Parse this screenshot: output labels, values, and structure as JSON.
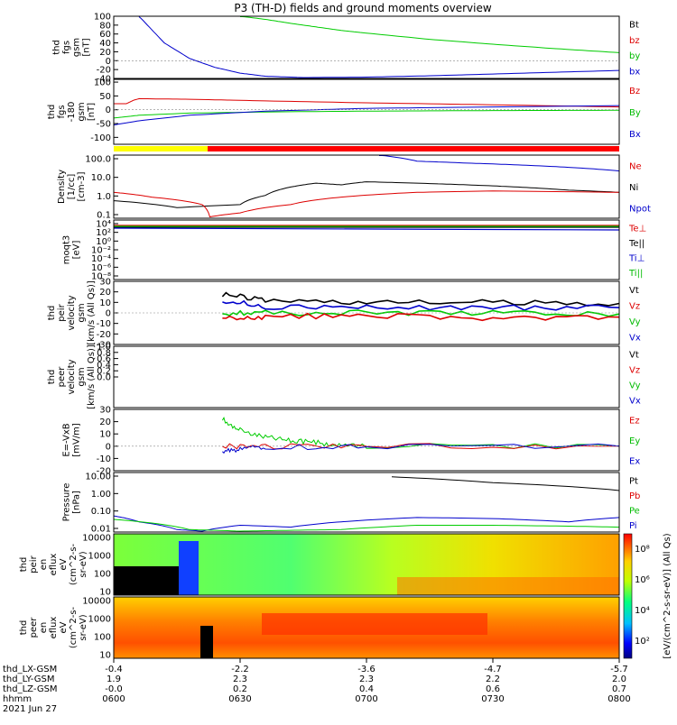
{
  "title": "P3 (TH-D) fields and ground moments overview",
  "chart_data": {
    "type": "line",
    "x": [
      "0600",
      "0630",
      "0700",
      "0730",
      "0800"
    ],
    "x_time_range": [
      "0600",
      "0800"
    ],
    "panels": [
      {
        "ylabel": [
          "thd",
          "fgs",
          "gsm",
          "[nT]"
        ],
        "ylim": [
          -40,
          100
        ],
        "yticks": [
          "100",
          "80",
          "60",
          "40",
          "20",
          "0",
          "-20",
          "-40"
        ],
        "legend": [
          {
            "label": "Bt",
            "color": "#000000"
          },
          {
            "label": "bz",
            "color": "#dd0000"
          },
          {
            "label": "by",
            "color": "#00bb00"
          },
          {
            "label": "bx",
            "color": "#0000cc"
          }
        ],
        "series": [
          {
            "name": "by",
            "color": "#00cc00",
            "x": [
              0.5,
              0.6,
              0.7,
              0.8,
              0.9,
              1.0,
              1.25,
              1.5,
              1.75,
              2.0
            ],
            "values": [
              100,
              93,
              84,
              76,
              68,
              62,
              48,
              37,
              27,
              18
            ]
          },
          {
            "name": "bx",
            "color": "#0000cc",
            "x": [
              0.1,
              0.2,
              0.3,
              0.4,
              0.5,
              0.6,
              0.75,
              1.0,
              1.25,
              1.5,
              1.75,
              2.0
            ],
            "values": [
              100,
              40,
              5,
              -15,
              -28,
              -35,
              -38,
              -37,
              -34,
              -30,
              -26,
              -22
            ]
          }
        ]
      },
      {
        "ylabel": [
          "thd",
          "fgs",
          "-180",
          "gsm",
          "[nT]"
        ],
        "ylim": [
          -125,
          110
        ],
        "yticks": [
          "100",
          "50",
          "0",
          "-50",
          "-100"
        ],
        "legend": [
          {
            "label": "Bz",
            "color": "#dd0000"
          },
          {
            "label": "By",
            "color": "#00bb00"
          },
          {
            "label": "Bx",
            "color": "#0000cc"
          }
        ],
        "series": [
          {
            "name": "Bz",
            "color": "#dd0000",
            "x": [
              0.0,
              0.05,
              0.08,
              0.1,
              0.3,
              0.6,
              1.0,
              1.5,
              2.0
            ],
            "values": [
              22,
              22,
              35,
              40,
              38,
              32,
              25,
              18,
              10
            ]
          },
          {
            "name": "By",
            "color": "#00cc00",
            "x": [
              0.0,
              0.1,
              0.3,
              0.6,
              1.0,
              1.5,
              2.0
            ],
            "values": [
              -30,
              -20,
              -12,
              -8,
              -5,
              -3,
              -2
            ]
          },
          {
            "name": "Bx",
            "color": "#0000cc",
            "x": [
              0.0,
              0.1,
              0.3,
              0.6,
              1.0,
              1.5,
              2.0
            ],
            "values": [
              -55,
              -40,
              -20,
              -5,
              5,
              10,
              15
            ]
          }
        ]
      },
      {
        "ylabel": [
          "Density",
          "[1/cc]",
          "[cm-3]"
        ],
        "scale": "log",
        "ylim": [
          0.05,
          200
        ],
        "yticks": [
          "100.0",
          "10.0",
          "1.0",
          "0.1"
        ],
        "legend": [
          {
            "label": "Ne",
            "color": "#dd0000"
          },
          {
            "label": "Ni",
            "color": "#000000"
          },
          {
            "label": "Npot",
            "color": "#0000cc"
          }
        ],
        "series": [
          {
            "name": "Ne",
            "color": "#0000cc",
            "x": [
              1.05,
              1.2,
              1.4,
              1.6,
              1.8,
              2.0
            ],
            "values": [
              200,
              90,
              70,
              55,
              40,
              25
            ]
          },
          {
            "name": "Ni",
            "color": "#000000",
            "x": [
              0.0,
              0.25,
              0.5,
              0.6,
              0.7,
              0.8,
              0.9,
              1.0,
              1.2,
              1.4,
              1.6,
              1.8,
              2.0
            ],
            "values": [
              0.5,
              0.2,
              0.3,
              1.0,
              3.0,
              5.0,
              4.0,
              6.0,
              5.0,
              4.0,
              3.0,
              2.0,
              1.5
            ]
          },
          {
            "name": "Npot",
            "color": "#dd0000",
            "x": [
              0.0,
              0.15,
              0.35,
              0.38,
              0.5,
              0.7,
              0.9,
              1.2,
              1.5,
              2.0
            ],
            "values": [
              1.5,
              0.8,
              0.3,
              0.06,
              0.1,
              0.3,
              0.8,
              1.5,
              1.8,
              1.5
            ]
          }
        ]
      },
      {
        "ylabel": [
          "moqt3",
          "[eV]"
        ],
        "scale": "log",
        "ylim": [
          1e-09,
          10000.0
        ],
        "yticks": [
          "10⁴",
          "10²",
          "10⁰",
          "10⁻²",
          "10⁻⁴",
          "10⁻⁶",
          "10⁻⁸"
        ],
        "legend": [
          {
            "label": "Te⊥",
            "color": "#dd0000"
          },
          {
            "label": "Te||",
            "color": "#000000"
          },
          {
            "label": "Ti⊥",
            "color": "#0000cc"
          },
          {
            "label": "Ti||",
            "color": "#00bb00"
          }
        ]
      },
      {
        "ylabel": [
          "thd",
          "peir",
          "velocity",
          "gsm",
          "[km/s (All Qs)]"
        ],
        "ylim": [
          -30,
          30
        ],
        "yticks": [
          "30",
          "20",
          "10",
          "0",
          "-10",
          "-20",
          "-30"
        ],
        "legend": [
          {
            "label": "Vt",
            "color": "#000000"
          },
          {
            "label": "Vz",
            "color": "#dd0000"
          },
          {
            "label": "Vy",
            "color": "#00bb00"
          },
          {
            "label": "Vx",
            "color": "#0000cc"
          }
        ],
        "series": [
          {
            "name": "Vt",
            "color": "#000000",
            "x": [
              0.43,
              0.6,
              1.0,
              1.5,
              2.0
            ],
            "values": [
              18,
              12,
              10,
              10,
              9
            ]
          },
          {
            "name": "Vx",
            "color": "#0000cc",
            "x": [
              0.43,
              0.6,
              1.0,
              1.5,
              2.0
            ],
            "values": [
              12,
              6,
              5,
              5,
              5
            ]
          },
          {
            "name": "Vy",
            "color": "#00cc00",
            "x": [
              0.43,
              0.6,
              1.0,
              1.5,
              2.0
            ],
            "values": [
              0,
              0,
              0,
              0,
              -1
            ]
          },
          {
            "name": "Vz",
            "color": "#dd0000",
            "x": [
              0.43,
              0.6,
              1.0,
              1.5,
              2.0
            ],
            "values": [
              -5,
              -4,
              -2,
              -5,
              -4
            ]
          }
        ]
      },
      {
        "ylabel": [
          "thd",
          "peer",
          "velocity",
          "gsm",
          "[km/s (All Qs)]"
        ],
        "ylim": [
          -1,
          1
        ],
        "yticks": [
          "1.0",
          "0.8",
          "0.6",
          "0.4",
          "0.2",
          "0.0"
        ],
        "legend": [
          {
            "label": "Vt",
            "color": "#000000"
          },
          {
            "label": "Vz",
            "color": "#dd0000"
          },
          {
            "label": "Vy",
            "color": "#00bb00"
          },
          {
            "label": "Vx",
            "color": "#0000cc"
          }
        ]
      },
      {
        "ylabel": [
          "E=-VxB",
          "[mV/m]"
        ],
        "ylim": [
          -20,
          30
        ],
        "yticks": [
          "30",
          "20",
          "10",
          "0",
          "-10",
          "-20"
        ],
        "legend": [
          {
            "label": "Ez",
            "color": "#dd0000"
          },
          {
            "label": "Ey",
            "color": "#00bb00"
          },
          {
            "label": "Ex",
            "color": "#0000cc"
          }
        ],
        "series": [
          {
            "name": "Ey",
            "color": "#00cc00",
            "x": [
              0.43,
              0.5,
              0.6,
              0.7,
              0.8,
              0.9,
              1.0,
              2.0
            ],
            "values": [
              22,
              13,
              8,
              5,
              3,
              1,
              0,
              0
            ]
          },
          {
            "name": "Ez",
            "color": "#dd0000",
            "x": [
              0.43,
              0.6,
              1.0,
              2.0
            ],
            "values": [
              0,
              0,
              0,
              0
            ]
          },
          {
            "name": "Ex",
            "color": "#0000cc",
            "x": [
              0.43,
              0.5,
              0.6,
              1.0,
              2.0
            ],
            "values": [
              -5,
              -2,
              -1,
              0,
              0
            ]
          }
        ]
      },
      {
        "ylabel": [
          "Pressure",
          "[nPa]"
        ],
        "scale": "log",
        "ylim": [
          0.045,
          50
        ],
        "yticks": [
          "10.00",
          "1.00",
          "0.10",
          "0.01"
        ],
        "legend": [
          {
            "label": "Pt",
            "color": "#000000"
          },
          {
            "label": "Pb",
            "color": "#dd0000"
          },
          {
            "label": "Pe",
            "color": "#00bb00"
          },
          {
            "label": "Pi",
            "color": "#0000cc"
          }
        ],
        "series": [
          {
            "name": "Pt",
            "color": "#000000",
            "x": [
              1.1,
              1.5,
              2.0
            ],
            "values": [
              30,
              15,
              6
            ]
          },
          {
            "name": "Pi",
            "color": "#0000cc",
            "x": [
              0.0,
              0.1,
              0.25,
              0.35,
              0.5,
              0.7,
              0.9,
              1.2,
              1.5,
              1.8,
              2.0
            ],
            "values": [
              0.3,
              0.15,
              0.06,
              0.05,
              0.1,
              0.08,
              0.15,
              0.25,
              0.22,
              0.15,
              0.25
            ]
          },
          {
            "name": "Pe",
            "color": "#00cc00",
            "x": [
              0.0,
              0.3,
              0.5,
              0.7,
              0.9,
              1.2,
              1.5,
              1.8,
              2.0
            ],
            "values": [
              0.2,
              0.06,
              0.05,
              0.055,
              0.06,
              0.1,
              0.1,
              0.09,
              0.08
            ]
          }
        ]
      },
      {
        "ylabel": [
          "thd",
          "peir",
          "en",
          "eflux",
          "eV",
          "(cm^2-s-",
          "sr-eV)"
        ],
        "type": "heatmap",
        "yticks": [
          "10000",
          "1000",
          "100",
          "10"
        ]
      },
      {
        "ylabel": [
          "thd",
          "peer",
          "en",
          "eflux",
          "eV",
          "(cm^2-s-",
          "sr-eV)"
        ],
        "type": "heatmap",
        "yticks": [
          "10000",
          "1000",
          "100",
          "10"
        ]
      }
    ],
    "colorbar": {
      "label": "[eV/(cm^2-s-sr-eV)] (All Qs)",
      "ticks": [
        "10⁸",
        "10⁶",
        "10⁴",
        "10²"
      ]
    },
    "orbit_table": {
      "row_labels": [
        "thd_LX-GSM",
        "thd_LY-GSM",
        "thd_LZ-GSM",
        "hhmm",
        "2021 Jun 27"
      ],
      "columns": [
        [
          "-0.4",
          "1.9",
          "-0.0",
          "0600"
        ],
        [
          "-2.2",
          "2.3",
          "0.2",
          "0630"
        ],
        [
          "-3.6",
          "2.3",
          "0.4",
          "0700"
        ],
        [
          "-4.7",
          "2.2",
          "0.6",
          "0730"
        ],
        [
          "-5.7",
          "2.0",
          "0.7",
          "0800"
        ]
      ]
    }
  }
}
